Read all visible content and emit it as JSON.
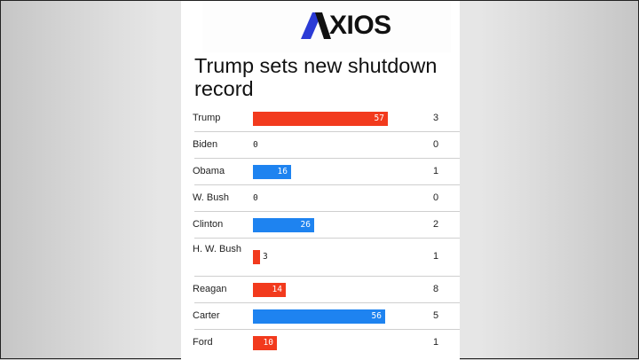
{
  "brand": {
    "logo_text": "AXIOS"
  },
  "colors": {
    "republican": "#f23a1d",
    "democrat": "#1e83f0"
  },
  "chart_data": {
    "type": "bar",
    "title": "Trump sets new shutdown record",
    "categories": [
      "Trump",
      "Biden",
      "Obama",
      "W. Bush",
      "Clinton",
      "H. W. Bush",
      "Reagan",
      "Carter",
      "Ford"
    ],
    "values": [
      57,
      0,
      16,
      0,
      26,
      3,
      14,
      56,
      10
    ],
    "counts": [
      3,
      0,
      1,
      0,
      2,
      1,
      8,
      5,
      1
    ],
    "party_colors": [
      "republican",
      "democrat",
      "democrat",
      "republican",
      "democrat",
      "republican",
      "republican",
      "democrat",
      "republican"
    ],
    "xlim": [
      0,
      60
    ]
  }
}
